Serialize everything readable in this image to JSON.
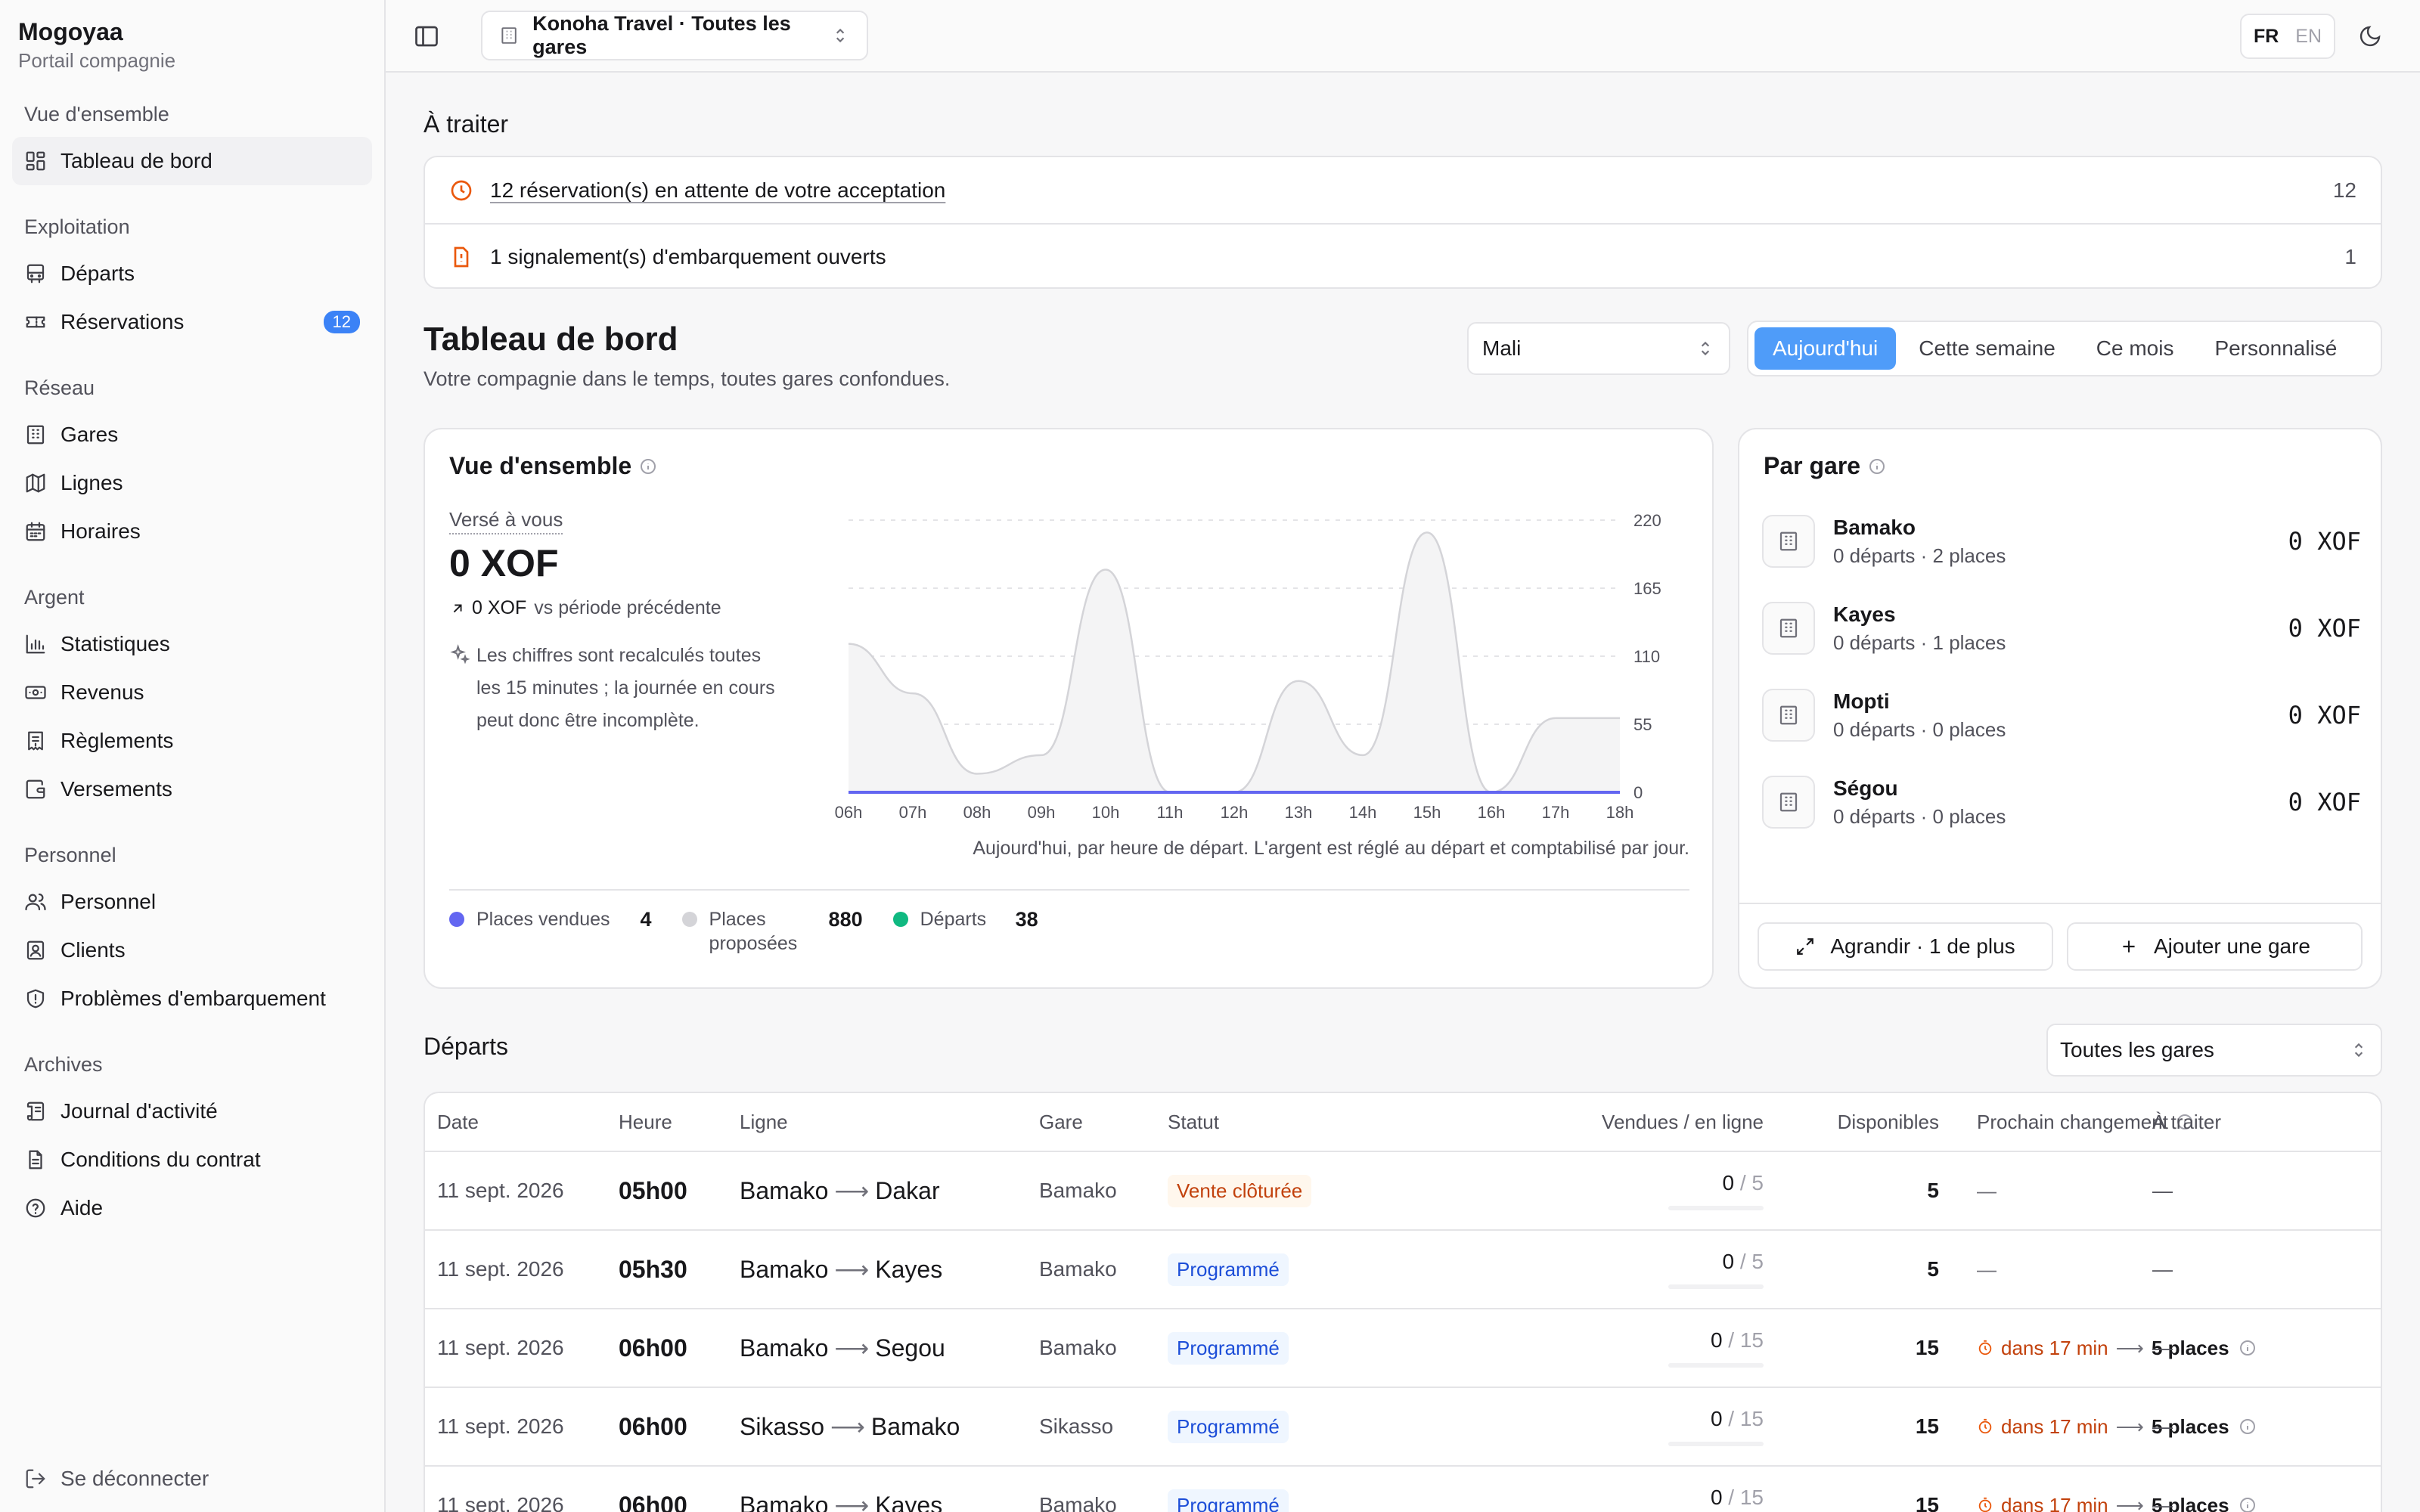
{
  "sidebar": {
    "brand": "Mogoyaa",
    "subtitle": "Portail compagnie",
    "groups": [
      {
        "label": "Vue d'ensemble",
        "items": [
          {
            "label": "Tableau de bord",
            "icon": "dashboard-icon"
          }
        ]
      },
      {
        "label": "Exploitation",
        "items": [
          {
            "label": "Départs",
            "icon": "bus-icon"
          },
          {
            "label": "Réservations",
            "icon": "ticket-icon",
            "badge": "12"
          }
        ]
      },
      {
        "label": "Réseau",
        "items": [
          {
            "label": "Gares",
            "icon": "building-icon"
          },
          {
            "label": "Lignes",
            "icon": "map-icon"
          },
          {
            "label": "Horaires",
            "icon": "calendar-icon"
          }
        ]
      },
      {
        "label": "Argent",
        "items": [
          {
            "label": "Statistiques",
            "icon": "bar-chart-icon"
          },
          {
            "label": "Revenus",
            "icon": "banknote-icon"
          },
          {
            "label": "Règlements",
            "icon": "receipt-icon"
          },
          {
            "label": "Versements",
            "icon": "wallet-icon"
          }
        ]
      },
      {
        "label": "Personnel",
        "items": [
          {
            "label": "Personnel",
            "icon": "users-icon"
          },
          {
            "label": "Clients",
            "icon": "contact-icon"
          },
          {
            "label": "Problèmes d'embarquement",
            "icon": "shield-alert-icon"
          }
        ]
      },
      {
        "label": "Archives",
        "items": [
          {
            "label": "Journal d'activité",
            "icon": "scroll-icon"
          },
          {
            "label": "Conditions du contrat",
            "icon": "document-icon"
          },
          {
            "label": "Aide",
            "icon": "help-icon"
          }
        ]
      }
    ],
    "logout": "Se déconnecter"
  },
  "topbar": {
    "company": "Konoha Travel · Toutes les gares",
    "lang_fr": "FR",
    "lang_en": "EN"
  },
  "todo": {
    "title": "À traiter",
    "rows": [
      {
        "text": "12 réservation(s) en attente de votre acceptation",
        "count": "12"
      },
      {
        "text": "1 signalement(s) d'embarquement ouverts",
        "count": "1"
      }
    ]
  },
  "dashboard": {
    "title": "Tableau de bord",
    "subtitle": "Votre compagnie dans le temps, toutes gares confondues.",
    "region": "Mali",
    "tabs": [
      "Aujourd'hui",
      "Cette semaine",
      "Ce mois",
      "Personnalisé"
    ]
  },
  "overview": {
    "title": "Vue d'ensemble",
    "paid_label": "Versé à vous",
    "paid_value": "0 XOF",
    "delta_value": "0 XOF",
    "delta_text": "vs période précédente",
    "note": "Les chiffres sont recalculés toutes les 15 minutes ; la journée en cours peut donc être incomplète.",
    "caption": "Aujourd'hui, par heure de départ. L'argent est réglé au départ et comptabilisé par jour.",
    "legend": [
      {
        "label": "Places vendues",
        "value": "4",
        "color": "#6366f1"
      },
      {
        "label": "Places proposées",
        "value": "880",
        "color": "#d4d4d8"
      },
      {
        "label": "Départs",
        "value": "38",
        "color": "#10b981"
      }
    ]
  },
  "chart_data": {
    "type": "area",
    "x": [
      "06h",
      "07h",
      "08h",
      "09h",
      "10h",
      "11h",
      "12h",
      "13h",
      "14h",
      "15h",
      "16h",
      "17h",
      "18h"
    ],
    "y_ticks": [
      "0",
      "55",
      "110",
      "165",
      "220"
    ],
    "ylim": [
      0,
      220
    ],
    "series": [
      {
        "name": "Places proposées",
        "values": [
          120,
          80,
          15,
          30,
          180,
          0,
          0,
          90,
          30,
          210,
          0,
          60,
          60
        ],
        "color": "#d4d4d8"
      },
      {
        "name": "Places vendues",
        "values": [
          0,
          0,
          0,
          0,
          0,
          0,
          0,
          0,
          0,
          0,
          0,
          0,
          0
        ],
        "color": "#6366f1"
      }
    ],
    "grid": true
  },
  "bygare": {
    "title": "Par gare",
    "rows": [
      {
        "name": "Bamako",
        "sub": "0 départs · 2 places",
        "amount": "0 XOF"
      },
      {
        "name": "Kayes",
        "sub": "0 départs · 1 places",
        "amount": "0 XOF"
      },
      {
        "name": "Mopti",
        "sub": "0 départs · 0 places",
        "amount": "0 XOF"
      },
      {
        "name": "Ségou",
        "sub": "0 départs · 0 places",
        "amount": "0 XOF"
      }
    ],
    "expand_btn": "Agrandir · 1 de plus",
    "add_btn": "Ajouter une gare"
  },
  "departures": {
    "title": "Départs",
    "filter": "Toutes les gares",
    "columns": [
      "Date",
      "Heure",
      "Ligne",
      "Gare",
      "Statut",
      "Vendues / en ligne",
      "Disponibles",
      "Prochain changement",
      "À traiter"
    ],
    "rows": [
      {
        "date": "11 sept. 2026",
        "heure": "05h00",
        "from": "Bamako",
        "to": "Dakar",
        "gare": "Bamako",
        "statut": "Vente clôturée",
        "kind": "closed",
        "sold": "0",
        "total": "/ 5",
        "dispo": "5",
        "next": null,
        "todo": "—"
      },
      {
        "date": "11 sept. 2026",
        "heure": "05h30",
        "from": "Bamako",
        "to": "Kayes",
        "gare": "Bamako",
        "statut": "Programmé",
        "kind": "prog",
        "sold": "0",
        "total": "/ 5",
        "dispo": "5",
        "next": null,
        "todo": "—"
      },
      {
        "date": "11 sept. 2026",
        "heure": "06h00",
        "from": "Bamako",
        "to": "Segou",
        "gare": "Bamako",
        "statut": "Programmé",
        "kind": "prog",
        "sold": "0",
        "total": "/ 15",
        "dispo": "15",
        "next": {
          "when": "dans 17 min",
          "what": "5 places"
        },
        "todo": "—"
      },
      {
        "date": "11 sept. 2026",
        "heure": "06h00",
        "from": "Sikasso",
        "to": "Bamako",
        "gare": "Sikasso",
        "statut": "Programmé",
        "kind": "prog",
        "sold": "0",
        "total": "/ 15",
        "dispo": "15",
        "next": {
          "when": "dans 17 min",
          "what": "5 places"
        },
        "todo": "—"
      },
      {
        "date": "11 sept. 2026",
        "heure": "06h00",
        "from": "Bamako",
        "to": "Kayes",
        "gare": "Bamako",
        "statut": "Programmé",
        "kind": "prog",
        "sold": "0",
        "total": "/ 15",
        "dispo": "15",
        "next": {
          "when": "dans 17 min",
          "what": "5 places"
        },
        "todo": "—"
      }
    ],
    "empty_dash": "—"
  }
}
